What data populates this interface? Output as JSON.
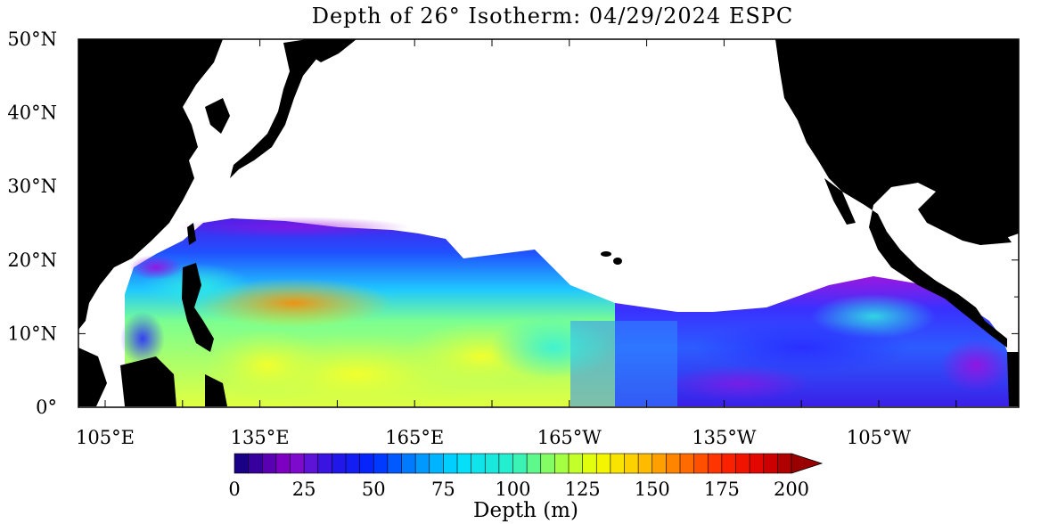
{
  "map": {
    "title": "Depth of 26° Isotherm: 04/29/2024 ESPC",
    "lat_labels": [
      "50°N",
      "40°N",
      "30°N",
      "20°N",
      "10°N",
      "0°"
    ],
    "lon_labels": [
      "105°E",
      "135°E",
      "165°E",
      "165°W",
      "135°W",
      "105°W"
    ],
    "colorbar": {
      "tick_labels": [
        "0",
        "25",
        "50",
        "75",
        "100",
        "125",
        "150",
        "175",
        "200"
      ],
      "title": "Depth (m)",
      "min": 0,
      "max": 200,
      "step": 5
    },
    "colors": {
      "land": "#000000",
      "no_data": "#ffffff"
    }
  }
}
